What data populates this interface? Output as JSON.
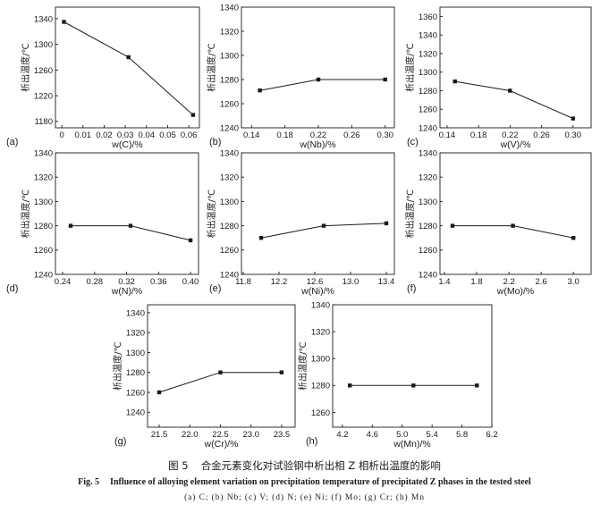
{
  "chart_data": [
    {
      "panel": "(a)",
      "type": "line",
      "x": [
        0.001,
        0.0315,
        0.062
      ],
      "y": [
        1335,
        1280,
        1190
      ],
      "xlabel": "w(C)/%",
      "ylabel": "析出温度/℃",
      "xlim": [
        -0.003,
        0.065
      ],
      "ylim": [
        1170,
        1358
      ],
      "x_ticks": [
        "0",
        "0.01",
        "0.02",
        "0.03",
        "0.04",
        "0.05",
        "0.06"
      ],
      "y_ticks": [
        1180,
        1220,
        1260,
        1300,
        1340
      ],
      "grid": false
    },
    {
      "panel": "(b)",
      "type": "line",
      "x": [
        0.15,
        0.22,
        0.3
      ],
      "y": [
        1271,
        1280,
        1280
      ],
      "xlabel": "w(Nb)/%",
      "ylabel": "析出温度/℃",
      "xlim": [
        0.128,
        0.311
      ],
      "ylim": [
        1240,
        1340
      ],
      "x_ticks": [
        "0.14",
        "0.18",
        "0.22",
        "0.26",
        "0.30"
      ],
      "y_ticks": [
        1240,
        1260,
        1280,
        1300,
        1320,
        1340
      ],
      "grid": false
    },
    {
      "panel": "(c)",
      "type": "line",
      "x": [
        0.15,
        0.22,
        0.3
      ],
      "y": [
        1290,
        1280,
        1250
      ],
      "xlabel": "w(V)/%",
      "ylabel": "析出温度/℃",
      "xlim": [
        0.131,
        0.323
      ],
      "ylim": [
        1240,
        1370
      ],
      "x_ticks": [
        "0.14",
        "0.18",
        "0.22",
        "0.26",
        "0.30"
      ],
      "y_ticks": [
        1240,
        1260,
        1280,
        1300,
        1320,
        1340,
        1360
      ],
      "grid": false
    },
    {
      "panel": "(d)",
      "type": "line",
      "x": [
        0.25,
        0.325,
        0.4
      ],
      "y": [
        1280,
        1280,
        1268
      ],
      "xlabel": "w(N)/%",
      "ylabel": "析出温度/℃",
      "xlim": [
        0.231,
        0.41
      ],
      "ylim": [
        1240,
        1340
      ],
      "x_ticks": [
        "0.24",
        "0.28",
        "0.32",
        "0.36",
        "0.40"
      ],
      "y_ticks": [
        1240,
        1260,
        1280,
        1300,
        1320,
        1340
      ],
      "grid": false
    },
    {
      "panel": "(e)",
      "type": "line",
      "x": [
        12.0,
        12.7,
        13.4
      ],
      "y": [
        1270,
        1280,
        1282
      ],
      "xlabel": "w(Ni)/%",
      "ylabel": "析出温度/℃",
      "xlim": [
        11.78,
        13.49
      ],
      "ylim": [
        1240,
        1340
      ],
      "x_ticks": [
        "11.8",
        "12.2",
        "12.6",
        "13.0",
        "13.4"
      ],
      "y_ticks": [
        1240,
        1260,
        1280,
        1300,
        1320,
        1340
      ],
      "grid": false
    },
    {
      "panel": "(f)",
      "type": "line",
      "x": [
        1.5,
        2.25,
        3.0
      ],
      "y": [
        1280,
        1280,
        1270
      ],
      "xlabel": "w(Mo)/%",
      "ylabel": "析出温度/℃",
      "xlim": [
        1.345,
        3.22
      ],
      "ylim": [
        1240,
        1340
      ],
      "x_ticks": [
        "1.4",
        "1.8",
        "2.2",
        "2.6",
        "3.0"
      ],
      "y_ticks": [
        1240,
        1260,
        1280,
        1300,
        1320,
        1340
      ],
      "grid": false
    },
    {
      "panel": "(g)",
      "type": "line",
      "x": [
        21.5,
        22.5,
        23.5
      ],
      "y": [
        1260,
        1280,
        1280
      ],
      "xlabel": "w(Cr)/%",
      "ylabel": "析出温度/℃",
      "xlim": [
        21.31,
        23.72
      ],
      "ylim": [
        1225,
        1348
      ],
      "x_ticks": [
        "21.5",
        "22.0",
        "22.5",
        "23.0",
        "23.5"
      ],
      "y_ticks": [
        1240,
        1260,
        1280,
        1300,
        1320,
        1340
      ],
      "grid": false
    },
    {
      "panel": "(h)",
      "type": "line",
      "x": [
        4.3,
        5.15,
        6.0
      ],
      "y": [
        1280,
        1280,
        1280
      ],
      "xlabel": "w(Mn)/%",
      "ylabel": "析出温度/℃",
      "xlim": [
        4.07,
        6.2
      ],
      "ylim": [
        1249,
        1340
      ],
      "x_ticks": [
        "4.2",
        "4.6",
        "5.0",
        "5.4",
        "5.8",
        "6.2"
      ],
      "y_ticks": [
        1260,
        1280,
        1300,
        1320,
        1340
      ],
      "grid": false
    }
  ],
  "figure": {
    "label_cn": "图 5",
    "title_cn": "合金元素变化对试验钢中析出相 Z 相析出温度的影响",
    "label_en": "Fig. 5",
    "title_en": "Influence of alloying element variation on precipitation temperature of precipitated Z phases in the tested steel",
    "panels_note": "(a) C; (b) Nb; (c) V; (d) N; (e) Ni; (f) Mo; (g) Cr; (h) Mn"
  },
  "colors": {
    "ink": "#1a1a1a",
    "background": "#ffffff"
  }
}
